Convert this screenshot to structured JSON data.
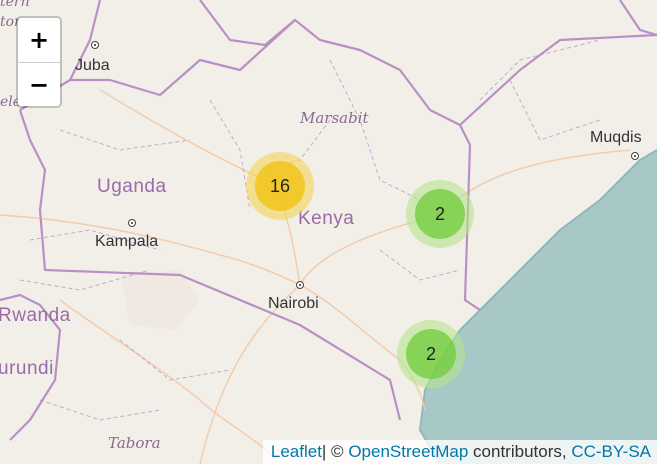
{
  "map": {
    "country_labels": [
      {
        "id": "uganda",
        "text": "Uganda"
      },
      {
        "id": "kenya",
        "text": "Kenya"
      },
      {
        "id": "rwanda",
        "text": "Rwanda"
      },
      {
        "id": "burundi",
        "text": "urundi"
      },
      {
        "id": "eritrea",
        "text": "tern"
      },
      {
        "id": "ethiopia_frag",
        "text": "tor"
      },
      {
        "id": "west_frag",
        "text": "ele"
      }
    ],
    "region_labels": [
      {
        "id": "marsabit",
        "text": "Marsabit"
      },
      {
        "id": "tabora",
        "text": "Tabora"
      }
    ],
    "cities": [
      {
        "id": "juba",
        "text": "Juba"
      },
      {
        "id": "kampala",
        "text": "Kampala"
      },
      {
        "id": "nairobi",
        "text": "Nairobi"
      },
      {
        "id": "muqdisho",
        "text": "Muqdis"
      }
    ],
    "clusters": [
      {
        "id": "c1",
        "count": "16",
        "level": "medium"
      },
      {
        "id": "c2",
        "count": "2",
        "level": "small"
      },
      {
        "id": "c3",
        "count": "2",
        "level": "small"
      }
    ],
    "colors": {
      "land": "#f2efe9",
      "water": "#aad3df",
      "ocean": "#a8c8c8",
      "border": "#b98fc4",
      "road": "#f3c7a0",
      "cluster_small_outer": "#b5e28c",
      "cluster_small_inner": "#6ecc39",
      "cluster_medium_outer": "#f1d357",
      "cluster_medium_inner": "#f0c20c"
    }
  },
  "controls": {
    "zoom_in": "+",
    "zoom_out": "−"
  },
  "attribution": {
    "leaflet": "Leaflet",
    "sep": "| © ",
    "osm": "OpenStreetMap",
    "contributors": " contributors, ",
    "license": "CC-BY-SA"
  }
}
